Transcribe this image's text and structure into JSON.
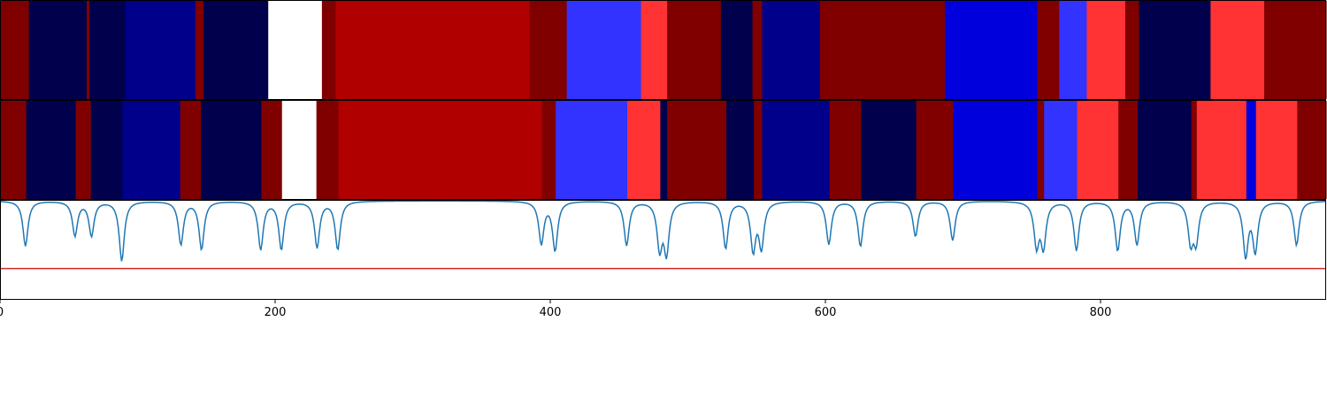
{
  "chart_data": {
    "type": "heatmap",
    "title": "",
    "xlabel": "",
    "ylabel": "",
    "xlim": [
      0,
      964
    ],
    "grid": false,
    "legend": "none",
    "colors": {
      "dark-red": "#800000",
      "red": "#b00000",
      "light-red": "#ff3333",
      "navy": "#00004c",
      "dark-blue": "#00008b",
      "blue": "#0000dd",
      "light-blue": "#3333ff",
      "white": "#ffffff"
    },
    "x_ticks": [
      0,
      200,
      400,
      600,
      800
    ],
    "x_tick_labels": [
      "0",
      "200",
      "400",
      "600",
      "800"
    ],
    "rows": [
      {
        "segments": [
          {
            "start": 0,
            "end": 21,
            "color": "dark-red"
          },
          {
            "start": 21,
            "end": 63,
            "color": "navy"
          },
          {
            "start": 63,
            "end": 65,
            "color": "dark-red"
          },
          {
            "start": 65,
            "end": 91,
            "color": "navy"
          },
          {
            "start": 91,
            "end": 142,
            "color": "dark-blue"
          },
          {
            "start": 142,
            "end": 148,
            "color": "dark-red"
          },
          {
            "start": 148,
            "end": 195,
            "color": "navy"
          },
          {
            "start": 195,
            "end": 234,
            "color": "white"
          },
          {
            "start": 234,
            "end": 244,
            "color": "dark-red"
          },
          {
            "start": 244,
            "end": 385,
            "color": "red"
          },
          {
            "start": 385,
            "end": 412,
            "color": "dark-red"
          },
          {
            "start": 412,
            "end": 466,
            "color": "light-blue"
          },
          {
            "start": 466,
            "end": 485,
            "color": "light-red"
          },
          {
            "start": 485,
            "end": 524,
            "color": "dark-red"
          },
          {
            "start": 524,
            "end": 547,
            "color": "navy"
          },
          {
            "start": 547,
            "end": 554,
            "color": "dark-red"
          },
          {
            "start": 554,
            "end": 596,
            "color": "dark-blue"
          },
          {
            "start": 596,
            "end": 687,
            "color": "dark-red"
          },
          {
            "start": 687,
            "end": 754,
            "color": "blue"
          },
          {
            "start": 754,
            "end": 770,
            "color": "dark-red"
          },
          {
            "start": 770,
            "end": 790,
            "color": "light-blue"
          },
          {
            "start": 790,
            "end": 818,
            "color": "light-red"
          },
          {
            "start": 818,
            "end": 828,
            "color": "dark-red"
          },
          {
            "start": 828,
            "end": 880,
            "color": "navy"
          },
          {
            "start": 880,
            "end": 919,
            "color": "light-red"
          },
          {
            "start": 919,
            "end": 964,
            "color": "dark-red"
          }
        ]
      },
      {
        "segments": [
          {
            "start": 0,
            "end": 19,
            "color": "dark-red"
          },
          {
            "start": 19,
            "end": 55,
            "color": "navy"
          },
          {
            "start": 55,
            "end": 66,
            "color": "dark-red"
          },
          {
            "start": 66,
            "end": 89,
            "color": "navy"
          },
          {
            "start": 89,
            "end": 131,
            "color": "dark-blue"
          },
          {
            "start": 131,
            "end": 146,
            "color": "dark-red"
          },
          {
            "start": 146,
            "end": 190,
            "color": "navy"
          },
          {
            "start": 190,
            "end": 205,
            "color": "dark-red"
          },
          {
            "start": 205,
            "end": 230,
            "color": "white"
          },
          {
            "start": 230,
            "end": 246,
            "color": "dark-red"
          },
          {
            "start": 246,
            "end": 394,
            "color": "red"
          },
          {
            "start": 394,
            "end": 404,
            "color": "dark-red"
          },
          {
            "start": 404,
            "end": 456,
            "color": "light-blue"
          },
          {
            "start": 456,
            "end": 480,
            "color": "light-red"
          },
          {
            "start": 480,
            "end": 485,
            "color": "navy"
          },
          {
            "start": 485,
            "end": 528,
            "color": "dark-red"
          },
          {
            "start": 528,
            "end": 548,
            "color": "navy"
          },
          {
            "start": 548,
            "end": 554,
            "color": "dark-red"
          },
          {
            "start": 554,
            "end": 603,
            "color": "dark-blue"
          },
          {
            "start": 603,
            "end": 626,
            "color": "dark-red"
          },
          {
            "start": 626,
            "end": 666,
            "color": "navy"
          },
          {
            "start": 666,
            "end": 693,
            "color": "dark-red"
          },
          {
            "start": 693,
            "end": 754,
            "color": "blue"
          },
          {
            "start": 754,
            "end": 759,
            "color": "dark-red"
          },
          {
            "start": 759,
            "end": 783,
            "color": "light-blue"
          },
          {
            "start": 783,
            "end": 813,
            "color": "light-red"
          },
          {
            "start": 813,
            "end": 827,
            "color": "dark-red"
          },
          {
            "start": 827,
            "end": 866,
            "color": "navy"
          },
          {
            "start": 866,
            "end": 870,
            "color": "dark-red"
          },
          {
            "start": 870,
            "end": 906,
            "color": "light-red"
          },
          {
            "start": 906,
            "end": 913,
            "color": "blue"
          },
          {
            "start": 913,
            "end": 943,
            "color": "light-red"
          },
          {
            "start": 943,
            "end": 964,
            "color": "dark-red"
          }
        ]
      }
    ],
    "signal": {
      "line_color": "#1f77b4",
      "threshold_color": "#d62728",
      "ylim": [
        0,
        1
      ],
      "baseline": 1.0,
      "threshold": 0.31,
      "dips": [
        {
          "x": 18.5,
          "depth": 0.46
        },
        {
          "x": 54.5,
          "depth": 0.35
        },
        {
          "x": 66.5,
          "depth": 0.35
        },
        {
          "x": 88.5,
          "depth": 0.61
        },
        {
          "x": 131.5,
          "depth": 0.44
        },
        {
          "x": 146.5,
          "depth": 0.49
        },
        {
          "x": 189.5,
          "depth": 0.49
        },
        {
          "x": 204.5,
          "depth": 0.49
        },
        {
          "x": 230.5,
          "depth": 0.47
        },
        {
          "x": 245.5,
          "depth": 0.49
        },
        {
          "x": 393.5,
          "depth": 0.43
        },
        {
          "x": 403.5,
          "depth": 0.5
        },
        {
          "x": 455.5,
          "depth": 0.45
        },
        {
          "x": 479.5,
          "depth": 0.47
        },
        {
          "x": 484.5,
          "depth": 0.51
        },
        {
          "x": 527.5,
          "depth": 0.48
        },
        {
          "x": 547.5,
          "depth": 0.49
        },
        {
          "x": 553.5,
          "depth": 0.46
        },
        {
          "x": 602.5,
          "depth": 0.44
        },
        {
          "x": 625.5,
          "depth": 0.46
        },
        {
          "x": 665.5,
          "depth": 0.36
        },
        {
          "x": 692.5,
          "depth": 0.4
        },
        {
          "x": 753.5,
          "depth": 0.44
        },
        {
          "x": 758.5,
          "depth": 0.45
        },
        {
          "x": 782.5,
          "depth": 0.5
        },
        {
          "x": 812.5,
          "depth": 0.5
        },
        {
          "x": 826.5,
          "depth": 0.44
        },
        {
          "x": 865.5,
          "depth": 0.4
        },
        {
          "x": 869.5,
          "depth": 0.39
        },
        {
          "x": 905.5,
          "depth": 0.55
        },
        {
          "x": 912.5,
          "depth": 0.5
        },
        {
          "x": 942.5,
          "depth": 0.45
        }
      ]
    }
  }
}
